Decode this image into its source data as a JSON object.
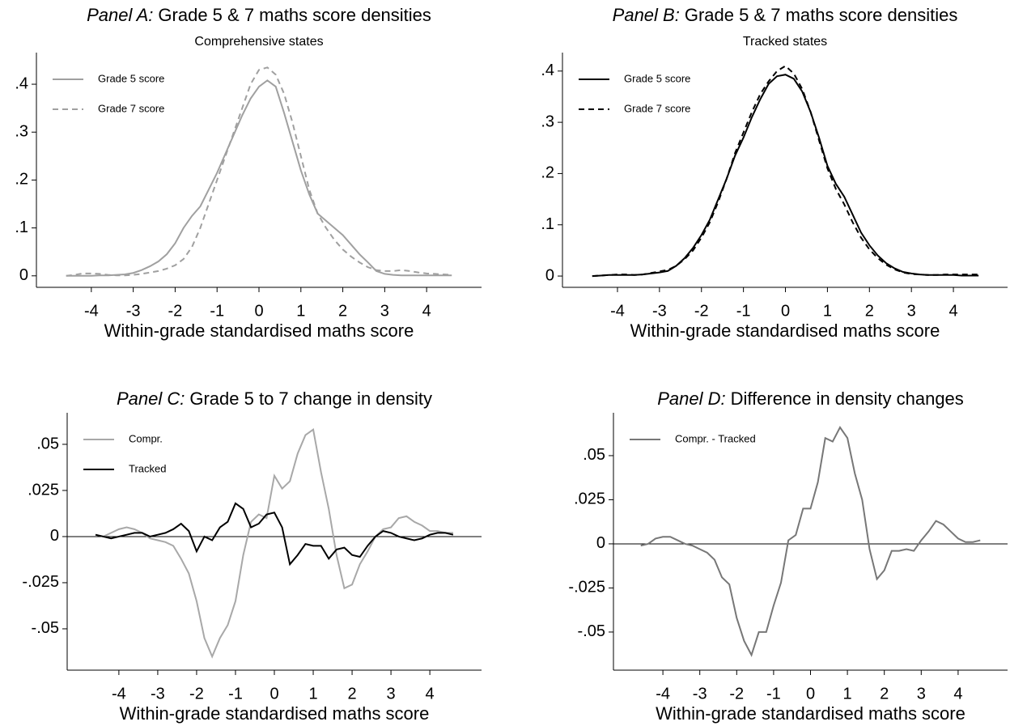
{
  "chart_data": [
    {
      "type": "line",
      "title_prefix": "Panel A:",
      "title": "Grade 5 & 7 maths score densities",
      "subtitle": "Comprehensive states",
      "x_label": "Within-grade standardised maths score",
      "legend": "top-left",
      "xlim": [
        -5.31,
        5.31
      ],
      "ylim": [
        -0.024,
        0.466
      ],
      "xticks": [
        -4,
        -3,
        -2,
        -1,
        0,
        1,
        2,
        3,
        4
      ],
      "yticks": [
        0,
        {
          "value": 0.1,
          "label": ".1"
        },
        {
          "value": 0.2,
          "label": ".2"
        },
        {
          "value": 0.3,
          "label": ".3"
        },
        {
          "value": 0.4,
          "label": ".4"
        }
      ],
      "x": [
        -4.6,
        -4.4,
        -4.2,
        -4.0,
        -3.8,
        -3.6,
        -3.4,
        -3.2,
        -3.0,
        -2.8,
        -2.6,
        -2.4,
        -2.2,
        -2.0,
        -1.8,
        -1.6,
        -1.4,
        -1.2,
        -1.0,
        -0.8,
        -0.6,
        -0.4,
        -0.2,
        0,
        0.2,
        0.4,
        0.6,
        0.8,
        1.0,
        1.2,
        1.4,
        1.6,
        1.8,
        2.0,
        2.2,
        2.4,
        2.6,
        2.8,
        3.0,
        3.2,
        3.4,
        3.6,
        3.8,
        4.0,
        4.2,
        4.4,
        4.6
      ],
      "series": [
        {
          "name": "Grade 5 score",
          "color": "#a0a0a0",
          "dash": "solid",
          "values": [
            0,
            0,
            0,
            0,
            0.001,
            0.001,
            0.002,
            0.003,
            0.006,
            0.012,
            0.02,
            0.03,
            0.045,
            0.068,
            0.1,
            0.125,
            0.145,
            0.18,
            0.215,
            0.255,
            0.295,
            0.335,
            0.37,
            0.395,
            0.408,
            0.395,
            0.34,
            0.28,
            0.22,
            0.17,
            0.13,
            0.115,
            0.1,
            0.085,
            0.065,
            0.045,
            0.028,
            0.01,
            0.004,
            0.002,
            0.001,
            0.001,
            0.001,
            0.001,
            0.001,
            0.001,
            0.001
          ]
        },
        {
          "name": "Grade 7 score",
          "color": "#a0a0a0",
          "dash": "dashed",
          "values": [
            0,
            0.002,
            0.005,
            0.005,
            0.004,
            0.002,
            0.001,
            0.001,
            0.002,
            0.004,
            0.007,
            0.01,
            0.015,
            0.022,
            0.035,
            0.06,
            0.1,
            0.15,
            0.2,
            0.25,
            0.3,
            0.35,
            0.4,
            0.43,
            0.435,
            0.42,
            0.38,
            0.32,
            0.25,
            0.18,
            0.13,
            0.1,
            0.075,
            0.055,
            0.04,
            0.028,
            0.018,
            0.012,
            0.01,
            0.01,
            0.012,
            0.01,
            0.007,
            0.005,
            0.004,
            0.003,
            0.002
          ]
        }
      ]
    },
    {
      "type": "line",
      "title_prefix": "Panel B:",
      "title": "Grade 5 & 7 maths score densities",
      "subtitle": "Tracked states",
      "x_label": "Within-grade standardised maths score",
      "legend": "top-left",
      "xlim": [
        -5.31,
        5.29
      ],
      "ylim": [
        -0.022,
        0.436
      ],
      "xticks": [
        -4,
        -3,
        -2,
        -1,
        0,
        1,
        2,
        3,
        4
      ],
      "yticks": [
        0,
        {
          "value": 0.1,
          "label": ".1"
        },
        {
          "value": 0.2,
          "label": ".2"
        },
        {
          "value": 0.3,
          "label": ".3"
        },
        {
          "value": 0.4,
          "label": ".4"
        }
      ],
      "x": [
        -4.6,
        -4.4,
        -4.2,
        -4.0,
        -3.8,
        -3.6,
        -3.4,
        -3.2,
        -3.0,
        -2.8,
        -2.6,
        -2.4,
        -2.2,
        -2.0,
        -1.8,
        -1.6,
        -1.4,
        -1.2,
        -1.0,
        -0.8,
        -0.6,
        -0.4,
        -0.2,
        0,
        0.2,
        0.4,
        0.6,
        0.8,
        1.0,
        1.2,
        1.4,
        1.6,
        1.8,
        2.0,
        2.2,
        2.4,
        2.6,
        2.8,
        3.0,
        3.2,
        3.4,
        3.6,
        3.8,
        4.0,
        4.2,
        4.4,
        4.6
      ],
      "series": [
        {
          "name": "Grade 5 score",
          "color": "#000000",
          "dash": "solid",
          "values": [
            0,
            0.001,
            0.002,
            0.002,
            0.002,
            0.002,
            0.003,
            0.005,
            0.007,
            0.01,
            0.02,
            0.035,
            0.055,
            0.08,
            0.11,
            0.15,
            0.19,
            0.235,
            0.27,
            0.31,
            0.345,
            0.375,
            0.39,
            0.393,
            0.385,
            0.36,
            0.32,
            0.27,
            0.215,
            0.18,
            0.155,
            0.12,
            0.085,
            0.06,
            0.04,
            0.025,
            0.015,
            0.008,
            0.005,
            0.003,
            0.002,
            0.002,
            0.002,
            0.002,
            0.001,
            0.001,
            0.001
          ]
        },
        {
          "name": "Grade 7 score",
          "color": "#000000",
          "dash": "dashed",
          "values": [
            0,
            0.001,
            0.002,
            0.003,
            0.003,
            0.002,
            0.003,
            0.006,
            0.009,
            0.012,
            0.02,
            0.033,
            0.05,
            0.075,
            0.105,
            0.145,
            0.19,
            0.24,
            0.28,
            0.32,
            0.355,
            0.38,
            0.4,
            0.41,
            0.395,
            0.365,
            0.32,
            0.265,
            0.21,
            0.17,
            0.14,
            0.105,
            0.075,
            0.052,
            0.035,
            0.022,
            0.013,
            0.007,
            0.004,
            0.003,
            0.002,
            0.002,
            0.003,
            0.003,
            0.003,
            0.003,
            0.003
          ]
        }
      ]
    },
    {
      "type": "line",
      "title_prefix": "Panel C:",
      "title": "Grade 5 to 7 change in density",
      "x_label": "Within-grade standardised maths score",
      "legend": "top-left",
      "zero_line": true,
      "xlim": [
        -5.33,
        5.33
      ],
      "ylim": [
        -0.0724,
        0.0671
      ],
      "xticks": [
        -4,
        -3,
        -2,
        -1,
        0,
        1,
        2,
        3,
        4
      ],
      "yticks": [
        {
          "value": -0.05,
          "label": "-.05"
        },
        {
          "value": -0.025,
          "label": "-.025"
        },
        0,
        {
          "value": 0.025,
          "label": ".025"
        },
        {
          "value": 0.05,
          "label": ".05"
        }
      ],
      "x": [
        -4.6,
        -4.4,
        -4.2,
        -4.0,
        -3.8,
        -3.6,
        -3.4,
        -3.2,
        -3.0,
        -2.8,
        -2.6,
        -2.4,
        -2.2,
        -2.0,
        -1.8,
        -1.6,
        -1.4,
        -1.2,
        -1.0,
        -0.8,
        -0.6,
        -0.4,
        -0.2,
        0,
        0.2,
        0.4,
        0.6,
        0.8,
        1.0,
        1.2,
        1.4,
        1.6,
        1.8,
        2.0,
        2.2,
        2.4,
        2.6,
        2.8,
        3.0,
        3.2,
        3.4,
        3.6,
        3.8,
        4.0,
        4.2,
        4.4,
        4.6
      ],
      "series": [
        {
          "name": "Compr.",
          "color": "#a8a8a8",
          "dash": "solid",
          "values": [
            0.001,
            0,
            0.002,
            0.004,
            0.005,
            0.004,
            0.002,
            -0.001,
            -0.002,
            -0.003,
            -0.005,
            -0.012,
            -0.02,
            -0.035,
            -0.055,
            -0.065,
            -0.055,
            -0.048,
            -0.035,
            -0.01,
            0.008,
            0.012,
            0.01,
            0.033,
            0.026,
            0.03,
            0.045,
            0.055,
            0.058,
            0.035,
            0.015,
            -0.01,
            -0.028,
            -0.026,
            -0.015,
            -0.008,
            0,
            0.004,
            0.005,
            0.01,
            0.011,
            0.008,
            0.006,
            0.003,
            0.003,
            0.002,
            0.002
          ]
        },
        {
          "name": "Tracked",
          "color": "#000000",
          "dash": "solid",
          "values": [
            0.001,
            0,
            -0.001,
            0,
            0.001,
            0.002,
            0.002,
            0,
            0.001,
            0.002,
            0.004,
            0.007,
            0.003,
            -0.008,
            0,
            -0.002,
            0.005,
            0.008,
            0.018,
            0.015,
            0.005,
            0.007,
            0.012,
            0.013,
            0.005,
            -0.015,
            -0.01,
            -0.004,
            -0.005,
            -0.005,
            -0.012,
            -0.007,
            -0.006,
            -0.01,
            -0.011,
            -0.005,
            0,
            0.003,
            0.002,
            0,
            -0.001,
            -0.002,
            -0.001,
            0.001,
            0.002,
            0.002,
            0.001
          ]
        }
      ]
    },
    {
      "type": "line",
      "title_prefix": "Panel D:",
      "title": "Difference in density changes",
      "x_label": "Within-grade standardised maths score",
      "legend": "top-left",
      "zero_line": true,
      "xlim": [
        -5.34,
        5.34
      ],
      "ylim": [
        -0.0716,
        0.0743
      ],
      "xticks": [
        -4,
        -3,
        -2,
        -1,
        0,
        1,
        2,
        3,
        4
      ],
      "yticks": [
        {
          "value": -0.05,
          "label": "-.05"
        },
        {
          "value": -0.025,
          "label": "-.025"
        },
        0,
        {
          "value": 0.025,
          "label": ".025"
        },
        {
          "value": 0.05,
          "label": ".05"
        }
      ],
      "x": [
        -4.6,
        -4.4,
        -4.2,
        -4.0,
        -3.8,
        -3.6,
        -3.4,
        -3.2,
        -3.0,
        -2.8,
        -2.6,
        -2.4,
        -2.2,
        -2.0,
        -1.8,
        -1.6,
        -1.4,
        -1.2,
        -1.0,
        -0.8,
        -0.6,
        -0.4,
        -0.2,
        0,
        0.2,
        0.4,
        0.6,
        0.8,
        1.0,
        1.2,
        1.4,
        1.6,
        1.8,
        2.0,
        2.2,
        2.4,
        2.6,
        2.8,
        3.0,
        3.2,
        3.4,
        3.6,
        3.8,
        4.0,
        4.2,
        4.4,
        4.6
      ],
      "series": [
        {
          "name": "Compr. - Tracked",
          "color": "#777777",
          "dash": "solid",
          "values": [
            -0.001,
            0,
            0.003,
            0.004,
            0.004,
            0.002,
            0,
            -0.001,
            -0.003,
            -0.005,
            -0.009,
            -0.019,
            -0.023,
            -0.042,
            -0.055,
            -0.063,
            -0.05,
            -0.05,
            -0.035,
            -0.022,
            0.002,
            0.005,
            0.02,
            0.02,
            0.035,
            0.06,
            0.058,
            0.066,
            0.06,
            0.04,
            0.025,
            -0.003,
            -0.02,
            -0.015,
            -0.004,
            -0.004,
            -0.003,
            -0.004,
            0.002,
            0.007,
            0.013,
            0.011,
            0.007,
            0.003,
            0.001,
            0.001,
            0.002
          ]
        }
      ]
    }
  ]
}
